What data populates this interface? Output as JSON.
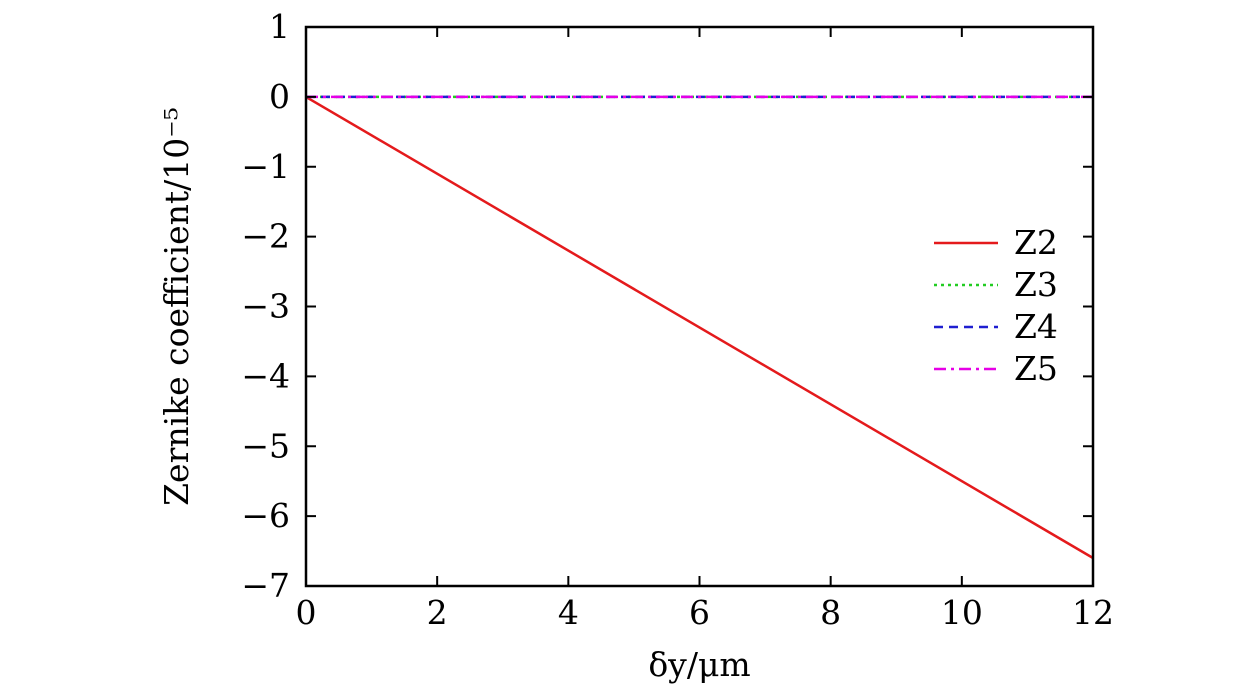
{
  "chart_data": {
    "type": "line",
    "title": "",
    "xlabel": "δy/μm",
    "ylabel": "Zernike coefficient/10⁻⁵",
    "xlim": [
      0,
      12
    ],
    "ylim": [
      -7,
      1
    ],
    "xticks": [
      0,
      2,
      4,
      6,
      8,
      10,
      12
    ],
    "yticks": [
      1,
      0,
      -1,
      -2,
      -3,
      -4,
      -5,
      -6,
      -7
    ],
    "xtick_labels": [
      "0",
      "2",
      "4",
      "6",
      "8",
      "10",
      "12"
    ],
    "ytick_labels": [
      "1",
      "0",
      "−1",
      "−2",
      "−3",
      "−4",
      "−5",
      "−6",
      "−7"
    ],
    "grid": false,
    "legend_position": "right",
    "series": [
      {
        "name": "Z2",
        "color": "#e41a1c",
        "dash": "solid",
        "x": [
          0,
          12
        ],
        "y": [
          0,
          -6.6
        ]
      },
      {
        "name": "Z3",
        "color": "#22cc22",
        "dash": "dotted",
        "x": [
          0,
          12
        ],
        "y": [
          0,
          0
        ]
      },
      {
        "name": "Z4",
        "color": "#1f1fd0",
        "dash": "dashed",
        "x": [
          0,
          12
        ],
        "y": [
          0,
          0
        ]
      },
      {
        "name": "Z5",
        "color": "#e600e6",
        "dash": "dashdot",
        "x": [
          0,
          12
        ],
        "y": [
          0,
          0
        ]
      }
    ]
  }
}
